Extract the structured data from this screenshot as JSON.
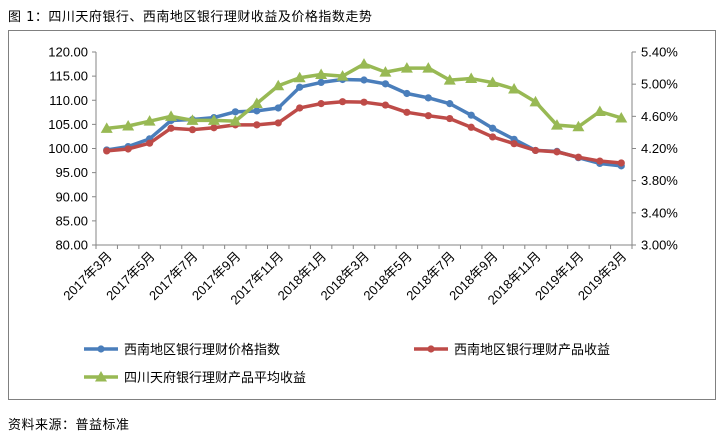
{
  "page": {
    "title": "图 1：四川天府银行、西南地区银行理财收益及价格指数走势",
    "source": "资料来源：普益标准"
  },
  "chart_data": {
    "type": "line",
    "title": "",
    "categories": [
      "2017年3月",
      "2017年4月",
      "2017年5月",
      "2017年6月",
      "2017年7月",
      "2017年8月",
      "2017年9月",
      "2017年10月",
      "2017年11月",
      "2017年12月",
      "2018年1月",
      "2018年2月",
      "2018年3月",
      "2018年4月",
      "2018年5月",
      "2018年6月",
      "2018年7月",
      "2018年8月",
      "2018年9月",
      "2018年10月",
      "2018年11月",
      "2018年12月",
      "2019年1月",
      "2019年2月",
      "2019年3月"
    ],
    "tick_labels": [
      "2017年3月",
      "2017年5月",
      "2017年7月",
      "2017年9月",
      "2017年11月",
      "2018年1月",
      "2018年3月",
      "2018年5月",
      "2018年7月",
      "2018年9月",
      "2018年11月",
      "2019年1月",
      "2019年3月"
    ],
    "left_axis": {
      "min": 80,
      "max": 120,
      "step": 5,
      "format": "0.00"
    },
    "right_axis": {
      "min": 3.0,
      "max": 5.4,
      "step": 0.4,
      "format": "0.00%"
    },
    "series": [
      {
        "name": "西南地区银行理财价格指数",
        "axis": "left",
        "color": "#4a7ebb",
        "marker": "circle",
        "values": [
          99.7,
          100.4,
          102.0,
          105.8,
          106.0,
          106.4,
          107.6,
          107.8,
          108.4,
          112.7,
          113.7,
          114.3,
          114.2,
          113.4,
          111.4,
          110.5,
          109.3,
          106.9,
          104.2,
          101.9,
          99.6,
          99.4,
          98.1,
          96.9,
          96.4
        ]
      },
      {
        "name": "西南地区银行理财产品收益",
        "axis": "left",
        "color": "#be4b48",
        "marker": "circle",
        "values": [
          99.5,
          99.9,
          101.1,
          104.2,
          103.9,
          104.3,
          104.9,
          104.9,
          105.3,
          108.4,
          109.3,
          109.7,
          109.6,
          109.0,
          107.5,
          106.8,
          106.2,
          104.4,
          102.4,
          101.0,
          99.6,
          99.3,
          98.2,
          97.4,
          97.0
        ]
      },
      {
        "name": "四川天府银行理财产品平均收益",
        "axis": "right",
        "color": "#98b954",
        "marker": "triangle",
        "values": [
          4.45,
          4.48,
          4.54,
          4.6,
          4.55,
          4.55,
          4.54,
          4.76,
          4.98,
          5.08,
          5.12,
          5.1,
          5.25,
          5.15,
          5.2,
          5.2,
          5.05,
          5.07,
          5.02,
          4.94,
          4.78,
          4.49,
          4.47,
          4.66,
          4.58
        ]
      }
    ],
    "legend": {
      "position": "bottom"
    },
    "grid": false
  }
}
